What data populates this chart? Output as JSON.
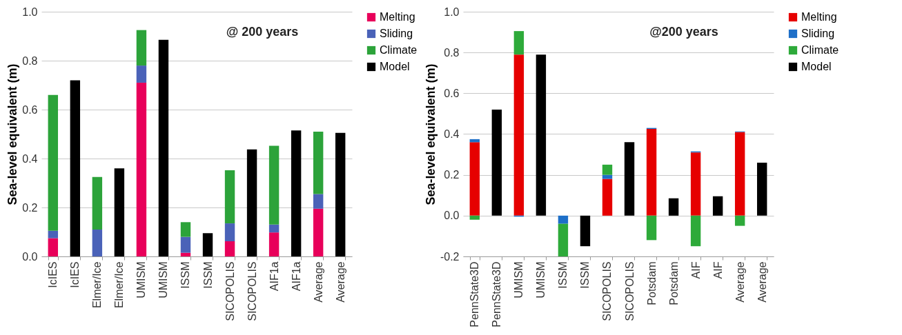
{
  "chart_data": [
    {
      "type": "bar",
      "stacked": true,
      "ylabel": "Sea-level equivalent (m)",
      "annotations": [
        "@ 200 years"
      ],
      "categories": [
        "IcIES",
        "IcIES",
        "Elmer/Ice",
        "Elmer/Ice",
        "UMISM",
        "UMISM",
        "ISSM",
        "ISSM",
        "SICOPOLIS",
        "SICOPOLIS",
        "AIF1a",
        "AIF1a",
        "Average",
        "Average"
      ],
      "series": [
        {
          "name": "Melting",
          "color": "#e8005a",
          "values": [
            0.075,
            null,
            0,
            null,
            0.71,
            null,
            0.015,
            null,
            0.062,
            null,
            0.098,
            null,
            0.195,
            null
          ]
        },
        {
          "name": "Sliding",
          "color": "#4a62b8",
          "values": [
            0.03,
            null,
            0.11,
            null,
            0.07,
            null,
            0.065,
            null,
            0.073,
            null,
            0.032,
            null,
            0.06,
            null
          ]
        },
        {
          "name": "Climate",
          "color": "#2ca33a",
          "values": [
            0.555,
            null,
            0.215,
            null,
            0.145,
            null,
            0.06,
            null,
            0.217,
            null,
            0.322,
            null,
            0.255,
            null
          ]
        },
        {
          "name": "Model",
          "color": "#000000",
          "values": [
            null,
            0.72,
            null,
            0.36,
            null,
            0.885,
            null,
            0.095,
            null,
            0.437,
            null,
            0.515,
            null,
            0.505
          ]
        }
      ],
      "ylim": [
        0,
        1
      ],
      "yticks": [
        {
          "value": 0,
          "label": "0.0"
        },
        {
          "value": 0.2,
          "label": "0.2"
        },
        {
          "value": 0.4,
          "label": "0.4"
        },
        {
          "value": 0.6,
          "label": "0.6"
        },
        {
          "value": 0.8,
          "label": "0.8"
        },
        {
          "value": 1,
          "label": "1.0"
        }
      ],
      "grid": "y",
      "legend": "right"
    },
    {
      "type": "bar",
      "stacked": true,
      "ylabel": "Sea-level equivalent (m)",
      "annotations": [
        "@200 years"
      ],
      "categories": [
        "PennState3D",
        "PennState3D",
        "UMISM",
        "UMISM",
        "ISSM",
        "ISSM",
        "SICOPOLIS",
        "SICOPOLIS",
        "Potsdam",
        "Potsdam",
        "AIF",
        "AIF",
        "Average",
        "Average"
      ],
      "series": [
        {
          "name": "Melting",
          "color": "#e60000",
          "values": [
            0.36,
            null,
            0.79,
            null,
            0,
            null,
            0.18,
            null,
            0.425,
            null,
            0.31,
            null,
            0.41,
            null
          ]
        },
        {
          "name": "Sliding",
          "color": "#1e6fc8",
          "values": [
            0.015,
            null,
            -0.005,
            null,
            -0.04,
            null,
            0.02,
            null,
            0.005,
            null,
            0.005,
            null,
            0.003,
            null
          ]
        },
        {
          "name": "Climate",
          "color": "#2eaa3a",
          "values": [
            -0.02,
            null,
            0.115,
            null,
            -0.16,
            null,
            0.05,
            null,
            -0.12,
            null,
            -0.15,
            null,
            -0.05,
            null
          ]
        },
        {
          "name": "Model",
          "color": "#000000",
          "values": [
            null,
            0.52,
            null,
            0.79,
            null,
            -0.15,
            null,
            0.36,
            null,
            0.085,
            null,
            0.095,
            null,
            0.26
          ]
        }
      ],
      "ylim": [
        -0.2,
        1
      ],
      "yticks": [
        {
          "value": -0.2,
          "label": "-0.2"
        },
        {
          "value": 0,
          "label": "0.0"
        },
        {
          "value": 0.2,
          "label": "0.2"
        },
        {
          "value": 0.4,
          "label": "0.4"
        },
        {
          "value": 0.6,
          "label": "0.6"
        },
        {
          "value": 0.8,
          "label": "0.8"
        },
        {
          "value": 1,
          "label": "1.0"
        }
      ],
      "grid": "y",
      "legend": "right"
    }
  ]
}
